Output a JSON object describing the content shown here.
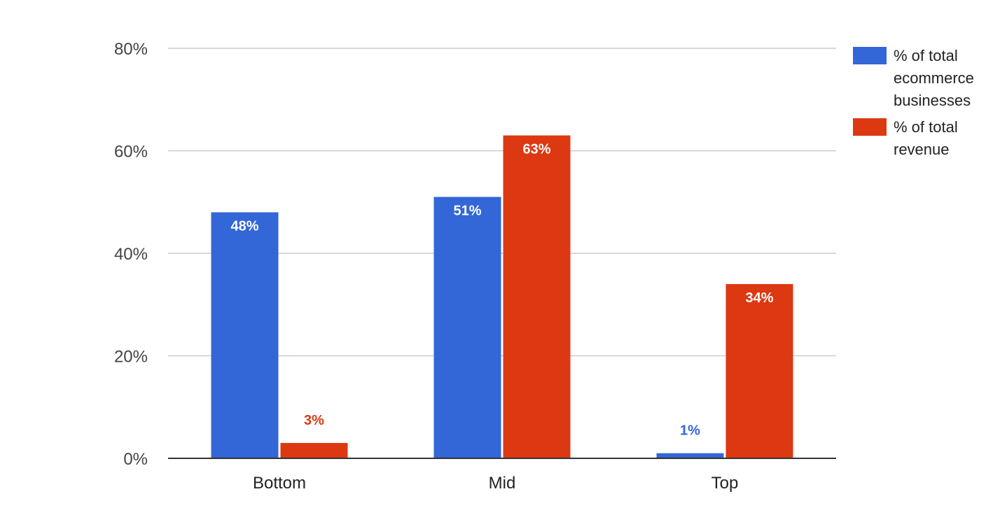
{
  "chart_data": {
    "type": "bar",
    "categories": [
      "Bottom",
      "Mid",
      "Top"
    ],
    "series": [
      {
        "name": "% of total ecommerce businesses",
        "legend_lines": [
          "% of total",
          "ecommerce",
          "businesses"
        ],
        "values": [
          48,
          51,
          1
        ],
        "labels": [
          "48%",
          "51%",
          "1%"
        ],
        "color": "#3366d6"
      },
      {
        "name": "% of total revenue",
        "legend_lines": [
          "% of total",
          "revenue"
        ],
        "values": [
          3,
          63,
          34
        ],
        "labels": [
          "3%",
          "63%",
          "34%"
        ],
        "color": "#dc3912"
      }
    ],
    "yticks": [
      "0%",
      "20%",
      "40%",
      "60%",
      "80%"
    ],
    "ytick_values": [
      0,
      20,
      40,
      60,
      80
    ],
    "ylim": [
      0,
      80
    ],
    "grid": true,
    "legend_position": "right",
    "title": "",
    "xlabel": "",
    "ylabel": ""
  }
}
